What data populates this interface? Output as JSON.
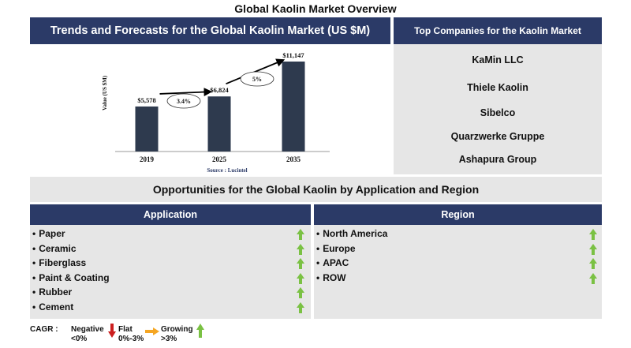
{
  "page_title": "Global Kaolin Market Overview",
  "chart_header": "Trends and Forecasts for the Global Kaolin Market (US $M)",
  "companies_header": "Top Companies for the Kaolin Market",
  "companies": [
    "KaMin LLC",
    "Thiele Kaolin",
    "Sibelco",
    "Quarzwerke Gruppe",
    "Ashapura Group"
  ],
  "opportunities_title": "Opportunities for the Global Kaolin by Application and Region",
  "application_header": "Application",
  "region_header": "Region",
  "applications": [
    {
      "label": "Paper",
      "trend": "growing"
    },
    {
      "label": "Ceramic",
      "trend": "growing"
    },
    {
      "label": "Fiberglass",
      "trend": "growing"
    },
    {
      "label": "Paint & Coating",
      "trend": "growing"
    },
    {
      "label": "Rubber",
      "trend": "growing"
    },
    {
      "label": "Cement",
      "trend": "growing"
    }
  ],
  "regions": [
    {
      "label": "North America",
      "trend": "growing"
    },
    {
      "label": "Europe",
      "trend": "growing"
    },
    {
      "label": "APAC",
      "trend": "growing"
    },
    {
      "label": "ROW",
      "trend": "growing"
    }
  ],
  "legend": {
    "title": "CAGR :",
    "items": [
      {
        "label": "Negative",
        "range": "<0%",
        "color": "#cc1f1f"
      },
      {
        "label": "Flat",
        "range": "0%-3%",
        "color": "#f5a623"
      },
      {
        "label": "Growing",
        "range": ">3%",
        "color": "#7ac143"
      }
    ]
  },
  "colors": {
    "navy": "#2b3a67",
    "bar": "#2e3a4e",
    "panel": "#e6e6e6",
    "growing": "#7ac143"
  },
  "chart_data": {
    "type": "bar",
    "categories": [
      "2019",
      "2025",
      "2035"
    ],
    "values": [
      5578,
      6824,
      11147
    ],
    "value_labels": [
      "$5,578",
      "$6,824",
      "$11,147"
    ],
    "ylabel": "Value (US $M)",
    "ylim": [
      0,
      11147
    ],
    "cagr_annotations": [
      {
        "from": "2019",
        "to": "2025",
        "label": "3.4%"
      },
      {
        "from": "2025",
        "to": "2035",
        "label": "5%"
      }
    ],
    "source": "Source : Lucintel",
    "grid": false
  }
}
